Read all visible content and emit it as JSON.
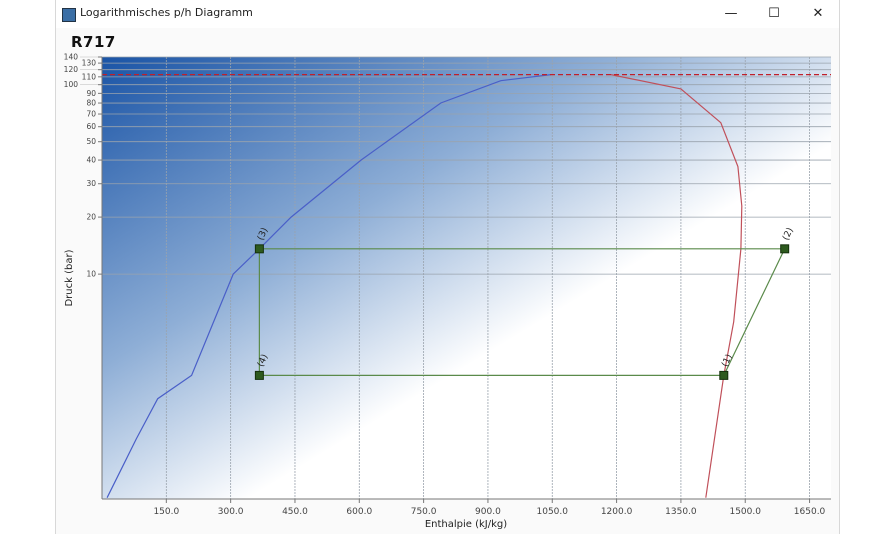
{
  "window": {
    "title": "Logarithmisches p/h Diagramm",
    "icons": [
      "app-icon",
      "minimize-icon",
      "maximize-icon",
      "close-icon"
    ]
  },
  "heading": "R717",
  "chart_data": {
    "type": "line",
    "title": "R717",
    "xlabel": "Enthalpie (kJ/kg)",
    "ylabel": "Druck (bar)",
    "xlim": [
      0,
      1700
    ],
    "ylim": [
      0.65,
      140
    ],
    "yscale": "log",
    "grid": true,
    "x_ticks": [
      "150.0",
      "300.0",
      "450.0",
      "600.0",
      "750.0",
      "900.0",
      "1050.0",
      "1200.0",
      "1350.0",
      "1500.0",
      "1650.0"
    ],
    "y_ticks": [
      "10",
      "20",
      "30",
      "40",
      "50",
      "60",
      "70",
      "80",
      "90",
      "100",
      "110",
      "120",
      "130",
      "140"
    ],
    "series": [
      {
        "kind": "saturated-liquid",
        "color": "#4a5fc8",
        "points": [
          [
            12,
            0.66
          ],
          [
            80,
            1.35
          ],
          [
            130,
            2.2
          ],
          [
            209,
            2.92
          ],
          [
            306,
            10
          ],
          [
            367,
            13.6
          ],
          [
            441,
            20
          ],
          [
            604,
            40
          ],
          [
            790,
            80
          ],
          [
            930,
            105
          ],
          [
            1047,
            113
          ]
        ]
      },
      {
        "kind": "saturated-vapor",
        "color": "#c0505a",
        "points": [
          [
            1187,
            113
          ],
          [
            1350,
            95
          ],
          [
            1443,
            63
          ],
          [
            1483,
            37
          ],
          [
            1492,
            22.9
          ],
          [
            1490,
            13.6
          ],
          [
            1473,
            5.6
          ],
          [
            1450,
            2.92
          ],
          [
            1408,
            0.66
          ]
        ]
      },
      {
        "kind": "critical-pressure",
        "color": "#c0202a",
        "dashed": true,
        "y": 113
      }
    ],
    "cycle": {
      "color": "#5a8a4a",
      "points": [
        {
          "label": "(1)",
          "h": 1450,
          "p": 2.92
        },
        {
          "label": "(2)",
          "h": 1592,
          "p": 13.6
        },
        {
          "label": "(3)",
          "h": 367,
          "p": 13.6
        },
        {
          "label": "(4)",
          "h": 367,
          "p": 2.92
        }
      ]
    }
  }
}
